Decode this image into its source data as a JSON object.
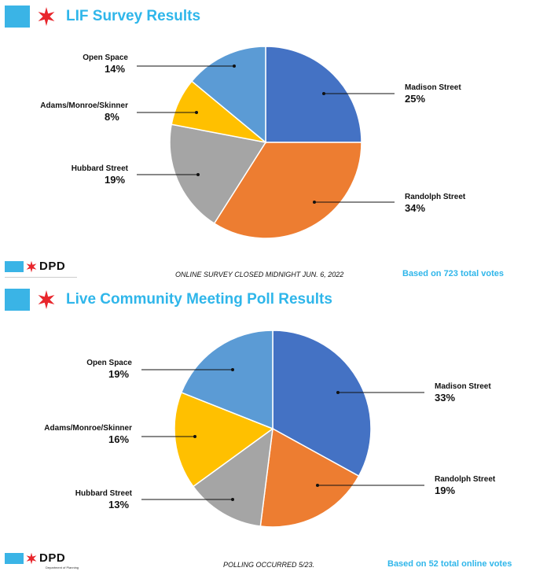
{
  "colors": {
    "accent": "#2fb6ea",
    "star": "#e8262c",
    "madison": "#4472c4",
    "randolph": "#ed7d31",
    "hubbard": "#a5a5a5",
    "adams": "#ffc000",
    "open": "#5b9bd5"
  },
  "icons": [
    "blue-square-icon",
    "red-star-icon",
    "dpd-logo"
  ],
  "panels": [
    {
      "title": "LIF Survey Results",
      "logo_text": "DPD",
      "logo_sub": "",
      "note": "ONLINE SURVEY CLOSED MIDNIGHT JUN. 6, 2022",
      "votes": "Based on 723 total votes"
    },
    {
      "title": "Live Community Meeting Poll Results",
      "logo_text": "DPD",
      "logo_sub": "Department of Planning",
      "note": "POLLING OCCURRED 5/23.",
      "votes": "Based on 52 total online votes"
    }
  ],
  "chart_data": [
    {
      "type": "pie",
      "title": "LIF Survey Results",
      "slices": [
        {
          "label": "Madison Street",
          "value": 25,
          "display": "25%"
        },
        {
          "label": "Randolph Street",
          "value": 34,
          "display": "34%"
        },
        {
          "label": "Hubbard Street",
          "value": 19,
          "display": "19%"
        },
        {
          "label": "Adams/Monroe/Skinner",
          "value": 8,
          "display": "8%"
        },
        {
          "label": "Open Space",
          "value": 14,
          "display": "14%"
        }
      ]
    },
    {
      "type": "pie",
      "title": "Live Community Meeting Poll Results",
      "slices": [
        {
          "label": "Madison Street",
          "value": 33,
          "display": "33%"
        },
        {
          "label": "Randolph Street",
          "value": 19,
          "display": "19%"
        },
        {
          "label": "Hubbard Street",
          "value": 13,
          "display": "13%"
        },
        {
          "label": "Adams/Monroe/Skinner",
          "value": 16,
          "display": "16%"
        },
        {
          "label": "Open Space",
          "value": 19,
          "display": "19%"
        }
      ]
    }
  ]
}
